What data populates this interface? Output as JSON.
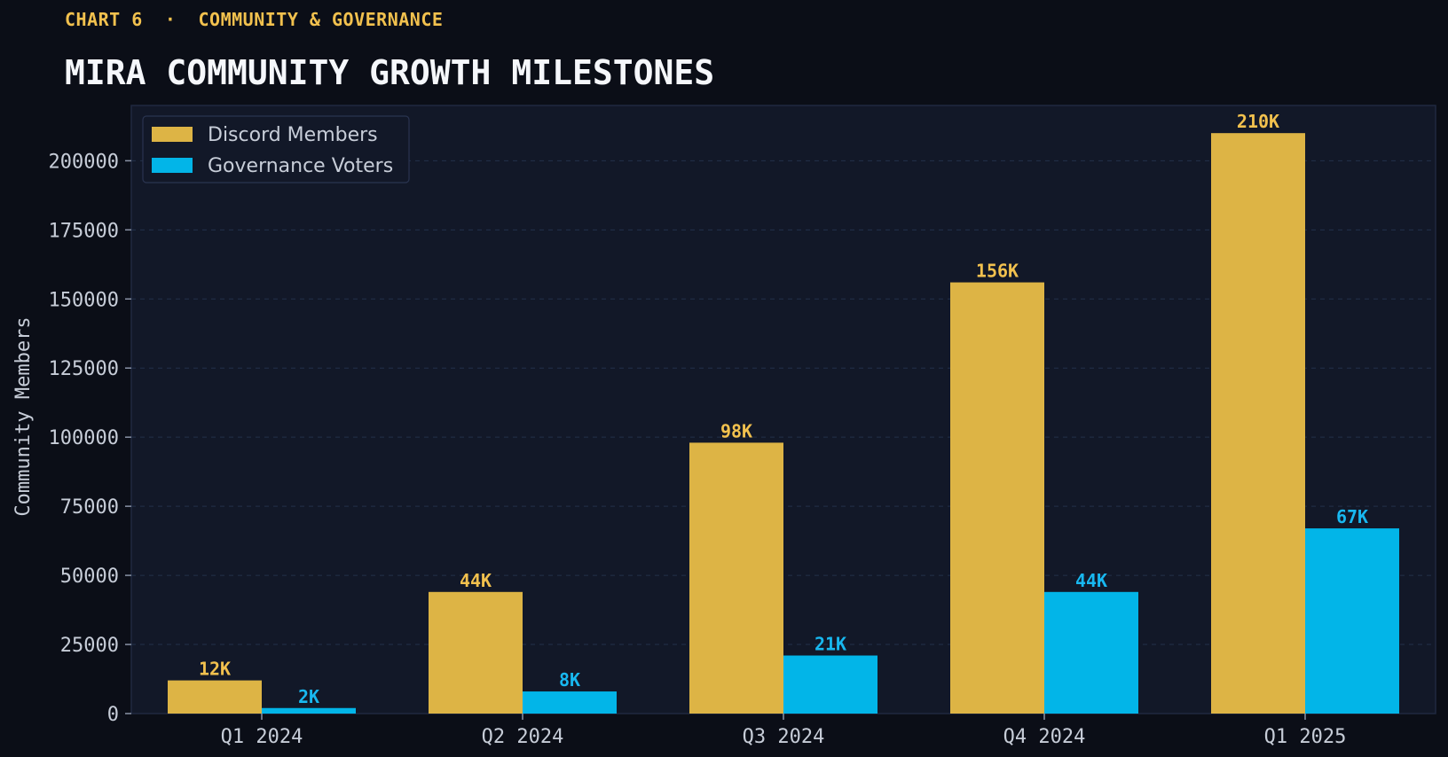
{
  "header": {
    "eyebrow": "CHART 6  ·  COMMUNITY & GOVERNANCE",
    "title": "MIRA COMMUNITY GROWTH MILESTONES"
  },
  "colors": {
    "background": "#0b0e17",
    "plot_background": "#121828",
    "discord": "#ddb445",
    "discord_label": "#f2c14e",
    "voters": "#02b5e8",
    "voters_label": "#18b8f0",
    "grid": "#22304a",
    "text": "#c7cdd8"
  },
  "chart_data": {
    "type": "bar",
    "title": "MIRA COMMUNITY GROWTH MILESTONES",
    "xlabel": "",
    "ylabel": "Community Members",
    "categories": [
      "Q1 2024",
      "Q2 2024",
      "Q3 2024",
      "Q4 2024",
      "Q1 2025"
    ],
    "series": [
      {
        "name": "Discord Members",
        "values": [
          12000,
          44000,
          98000,
          156000,
          210000
        ],
        "labels": [
          "12K",
          "44K",
          "98K",
          "156K",
          "210K"
        ]
      },
      {
        "name": "Governance Voters",
        "values": [
          2000,
          8000,
          21000,
          44000,
          67000
        ],
        "labels": [
          "2K",
          "8K",
          "21K",
          "44K",
          "67K"
        ]
      }
    ],
    "ylim": [
      0,
      220000
    ],
    "yticks": [
      0,
      25000,
      50000,
      75000,
      100000,
      125000,
      150000,
      175000,
      200000
    ],
    "grid": true,
    "legend": "top-left"
  }
}
